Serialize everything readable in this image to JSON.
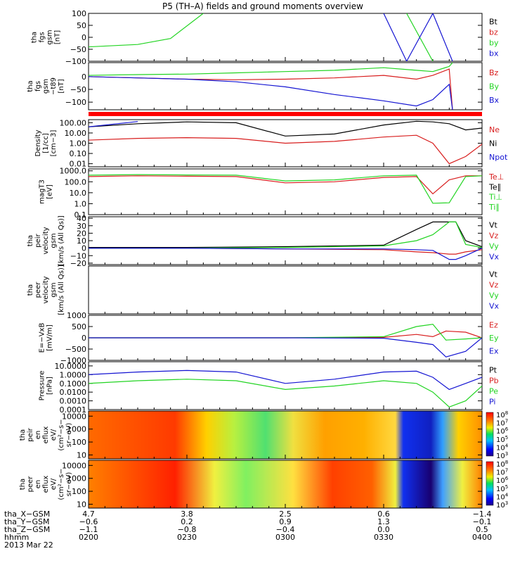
{
  "title": "P5 (TH–A) fields and ground moments overview",
  "colors": {
    "black": "#000000",
    "red": "#d81e1e",
    "green": "#22d422",
    "blue": "#1414d2",
    "separator": "#ff0000"
  },
  "panels": [
    {
      "ylabel": [
        "tha",
        "fgs",
        "gsm",
        "[nT]"
      ],
      "ticks": [
        "100",
        "50",
        "0",
        "−50",
        "−100"
      ],
      "scale": "linear",
      "ylim": [
        -100,
        100
      ],
      "legend": [
        {
          "label": "Bt",
          "color": "#000000"
        },
        {
          "label": "bz",
          "color": "#d81e1e"
        },
        {
          "label": "by",
          "color": "#22d422"
        },
        {
          "label": "bx",
          "color": "#1414d2"
        }
      ]
    },
    {
      "ylabel": [
        "tha",
        "fgs",
        "gsm",
        "−t89",
        "[nT]"
      ],
      "ticks": [
        "0",
        "−50",
        "−100"
      ],
      "scale": "linear",
      "ylim": [
        -130,
        55
      ],
      "legend": [
        {
          "label": "Bz",
          "color": "#d81e1e"
        },
        {
          "label": "By",
          "color": "#22d422"
        },
        {
          "label": "Bx",
          "color": "#1414d2"
        }
      ]
    },
    {
      "ylabel": [
        "Density",
        "[1/cc]",
        "[cm−3]"
      ],
      "ticks": [
        "100.00",
        "10.00",
        "1.00",
        "0.10",
        "0.01"
      ],
      "scale": "log",
      "ylim": [
        0.005,
        200
      ],
      "legend": [
        {
          "label": "Ne",
          "color": "#d81e1e"
        },
        {
          "label": "Ni",
          "color": "#000000"
        },
        {
          "label": "Npot",
          "color": "#1414d2"
        }
      ]
    },
    {
      "ylabel": [
        "magT3",
        "[eV]"
      ],
      "ticks": [
        "1000.0",
        "100.0",
        "10.0",
        "1.0",
        "0.1"
      ],
      "scale": "log",
      "ylim": [
        0.1,
        1500
      ],
      "legend": [
        {
          "label": "Te⊥",
          "color": "#d81e1e"
        },
        {
          "label": "Te∥",
          "color": "#000000"
        },
        {
          "label": "Ti⊥",
          "color": "#22d422"
        },
        {
          "label": "Ti∥",
          "color": "#22d422"
        }
      ]
    },
    {
      "ylabel": [
        "tha",
        "peir",
        "velocity",
        "gsm",
        "[km/s (All Qs)]"
      ],
      "ticks": [
        "40",
        "30",
        "20",
        "10",
        "0",
        "−10",
        "−20"
      ],
      "scale": "linear",
      "ylim": [
        -22,
        42
      ],
      "legend": [
        {
          "label": "Vt",
          "color": "#000000"
        },
        {
          "label": "Vz",
          "color": "#d81e1e"
        },
        {
          "label": "Vy",
          "color": "#22d422"
        },
        {
          "label": "Vx",
          "color": "#1414d2"
        }
      ]
    },
    {
      "ylabel": [
        "tha",
        "peer",
        "velocity",
        "gsm",
        "[km/s (All Qs)]"
      ],
      "ticks": [],
      "scale": "linear",
      "ylim": [
        0,
        1
      ],
      "legend": [
        {
          "label": "Vt",
          "color": "#000000"
        },
        {
          "label": "Vz",
          "color": "#d81e1e"
        },
        {
          "label": "Vy",
          "color": "#22d422"
        },
        {
          "label": "Vx",
          "color": "#1414d2"
        }
      ]
    },
    {
      "ylabel": [
        "E=−VxB",
        "[mV/m]"
      ],
      "ticks": [
        "1000",
        "500",
        "0",
        "−500",
        "−1000"
      ],
      "scale": "linear",
      "ylim": [
        -1000,
        1000
      ],
      "legend": [
        {
          "label": "Ez",
          "color": "#d81e1e"
        },
        {
          "label": "Ey",
          "color": "#22d422"
        },
        {
          "label": "Ex",
          "color": "#1414d2"
        }
      ]
    },
    {
      "ylabel": [
        "Pressure",
        "[nPa]"
      ],
      "ticks": [
        "10.0000",
        "1.0000",
        "0.1000",
        "0.0100",
        "0.0010",
        "0.0001"
      ],
      "scale": "log",
      "ylim": [
        0.0001,
        30
      ],
      "legend": [
        {
          "label": "Pt",
          "color": "#000000"
        },
        {
          "label": "Pb",
          "color": "#d81e1e"
        },
        {
          "label": "Pe",
          "color": "#22d422"
        },
        {
          "label": "Pi",
          "color": "#1414d2"
        }
      ]
    },
    {
      "ylabel": [
        "tha",
        "peir",
        "en",
        "eflux",
        "eV/",
        "(cm²−s−",
        "sr−eV)"
      ],
      "ticks": [
        "10000",
        "1000",
        "100",
        "10"
      ],
      "scale": "log",
      "ylim": [
        5,
        25000
      ],
      "colorbar_exponents": [
        "8",
        "7",
        "6",
        "5",
        "4",
        "3"
      ]
    },
    {
      "ylabel": [
        "tha",
        "peer",
        "en",
        "eflux",
        "eV/",
        "(cm²−s−",
        "sr−eV)"
      ],
      "ticks": [
        "10000",
        "1000",
        "100",
        "10"
      ],
      "scale": "log",
      "ylim": [
        5,
        25000
      ],
      "colorbar_exponents": [
        "8",
        "7",
        "6",
        "5",
        "4",
        "3"
      ]
    }
  ],
  "footer": {
    "row_labels": [
      "tha_X−GSM",
      "tha_Y−GSM",
      "tha_Z−GSM",
      "hhmm",
      "2013 Mar 22"
    ],
    "columns": [
      {
        "values": [
          "4.7",
          "−0.6",
          "−1.1",
          "0200"
        ]
      },
      {
        "values": [
          "3.8",
          "0.2",
          "−0.8",
          "0230"
        ]
      },
      {
        "values": [
          "2.5",
          "0.9",
          "−0.4",
          "0300"
        ]
      },
      {
        "values": [
          "0.6",
          "1.3",
          "0.0",
          "0330"
        ]
      },
      {
        "values": [
          "−1.4",
          "−0.1",
          "0.5",
          "0400"
        ]
      }
    ]
  },
  "chart_data": [
    {
      "type": "line",
      "title": "tha fgs gsm [nT]",
      "ylim": [
        -100,
        100
      ],
      "x": [
        "0200",
        "0215",
        "0225",
        "0235",
        "0300",
        "0330",
        "0337",
        "0345",
        "0351",
        "0400"
      ],
      "series": [
        {
          "name": "by",
          "values": [
            -40,
            -30,
            -5,
            100,
            null,
            null,
            100,
            -100,
            null,
            null
          ]
        },
        {
          "name": "bx",
          "values": [
            null,
            null,
            null,
            null,
            null,
            100,
            -100,
            100,
            -100,
            null
          ]
        }
      ]
    },
    {
      "type": "line",
      "title": "tha fgs gsm −t89 [nT]",
      "ylim": [
        -130,
        55
      ],
      "x": [
        "0200",
        "0215",
        "0230",
        "0245",
        "0300",
        "0315",
        "0330",
        "0340",
        "0345",
        "0350",
        "0351"
      ],
      "series": [
        {
          "name": "Bz",
          "values": [
            0,
            -5,
            -10,
            -12,
            -10,
            -5,
            5,
            -10,
            5,
            30,
            -130
          ]
        },
        {
          "name": "By",
          "values": [
            5,
            8,
            10,
            15,
            20,
            25,
            35,
            25,
            20,
            40,
            55
          ]
        },
        {
          "name": "Bx",
          "values": [
            0,
            -5,
            -10,
            -20,
            -40,
            -70,
            -95,
            -115,
            -90,
            -30,
            -130
          ]
        }
      ]
    },
    {
      "type": "line",
      "title": "Density",
      "ylim": [
        0.005,
        200
      ],
      "x": [
        "0200",
        "0215",
        "0230",
        "0245",
        "0300",
        "0315",
        "0330",
        "0340",
        "0345",
        "0350",
        "0355",
        "0400"
      ],
      "series": [
        {
          "name": "Ni",
          "values": [
            40,
            80,
            120,
            100,
            5,
            8,
            60,
            140,
            120,
            80,
            20,
            30
          ]
        },
        {
          "name": "Ne",
          "values": [
            2,
            3,
            3.5,
            3,
            1,
            1.5,
            4,
            6,
            1,
            0.01,
            0.05,
            0.8
          ]
        },
        {
          "name": "Npot",
          "values": [
            40,
            130,
            null,
            null,
            null,
            null,
            null,
            null,
            null,
            null,
            null,
            null
          ]
        }
      ]
    },
    {
      "type": "line",
      "title": "magT3 [eV]",
      "ylim": [
        0.1,
        1500
      ],
      "x": [
        "0200",
        "0215",
        "0230",
        "0245",
        "0300",
        "0315",
        "0330",
        "0340",
        "0345",
        "0350",
        "0355",
        "0400"
      ],
      "series": [
        {
          "name": "Te⊥",
          "values": [
            300,
            350,
            320,
            300,
            80,
            100,
            250,
            300,
            8,
            150,
            350,
            350
          ]
        },
        {
          "name": "Ti∥",
          "values": [
            400,
            450,
            420,
            400,
            120,
            150,
            350,
            400,
            1.1,
            1.2,
            300,
            350
          ]
        }
      ]
    },
    {
      "type": "line",
      "title": "tha peir velocity gsm",
      "ylim": [
        -22,
        42
      ],
      "x": [
        "0200",
        "0230",
        "0300",
        "0330",
        "0340",
        "0345",
        "0350",
        "0352",
        "0355",
        "0400"
      ],
      "series": [
        {
          "name": "Vt",
          "values": [
            1,
            1,
            2,
            4,
            25,
            35,
            35,
            35,
            10,
            2
          ]
        },
        {
          "name": "Vz",
          "values": [
            0,
            0,
            -1,
            -2,
            -5,
            -6,
            -8,
            -8,
            -5,
            -2
          ]
        },
        {
          "name": "Vy",
          "values": [
            0,
            0,
            1,
            3,
            10,
            18,
            35,
            35,
            5,
            1
          ]
        },
        {
          "name": "Vx",
          "values": [
            0,
            0,
            -1,
            -1,
            -2,
            -3,
            -15,
            -15,
            -10,
            0
          ]
        }
      ]
    },
    {
      "type": "line",
      "title": "E=−VxB [mV/m]",
      "ylim": [
        -1000,
        1000
      ],
      "x": [
        "0200",
        "0230",
        "0300",
        "0330",
        "0340",
        "0345",
        "0349",
        "0355",
        "0400"
      ],
      "series": [
        {
          "name": "Ez",
          "values": [
            0,
            0,
            0,
            20,
            150,
            50,
            300,
            250,
            0
          ]
        },
        {
          "name": "Ey",
          "values": [
            0,
            0,
            0,
            50,
            500,
            600,
            -100,
            -50,
            0
          ]
        },
        {
          "name": "Ex",
          "values": [
            0,
            0,
            0,
            -20,
            -200,
            -300,
            -850,
            -600,
            0
          ]
        }
      ]
    },
    {
      "type": "line",
      "title": "Pressure [nPa]",
      "ylim": [
        0.0001,
        30
      ],
      "x": [
        "0200",
        "0215",
        "0230",
        "0245",
        "0300",
        "0315",
        "0330",
        "0340",
        "0345",
        "0350",
        "0355",
        "0400"
      ],
      "series": [
        {
          "name": "Pi",
          "values": [
            1,
            2,
            3,
            2,
            0.1,
            0.3,
            2,
            2.5,
            0.5,
            0.02,
            0.1,
            0.5
          ]
        },
        {
          "name": "Pe",
          "values": [
            0.1,
            0.2,
            0.3,
            0.2,
            0.02,
            0.05,
            0.2,
            0.1,
            0.01,
            0.0002,
            0.001,
            0.05
          ]
        }
      ]
    },
    {
      "type": "heatmap",
      "title": "tha peir en eflux",
      "ylim": [
        5,
        25000
      ]
    },
    {
      "type": "heatmap",
      "title": "tha peer en eflux",
      "ylim": [
        5,
        25000
      ]
    }
  ]
}
